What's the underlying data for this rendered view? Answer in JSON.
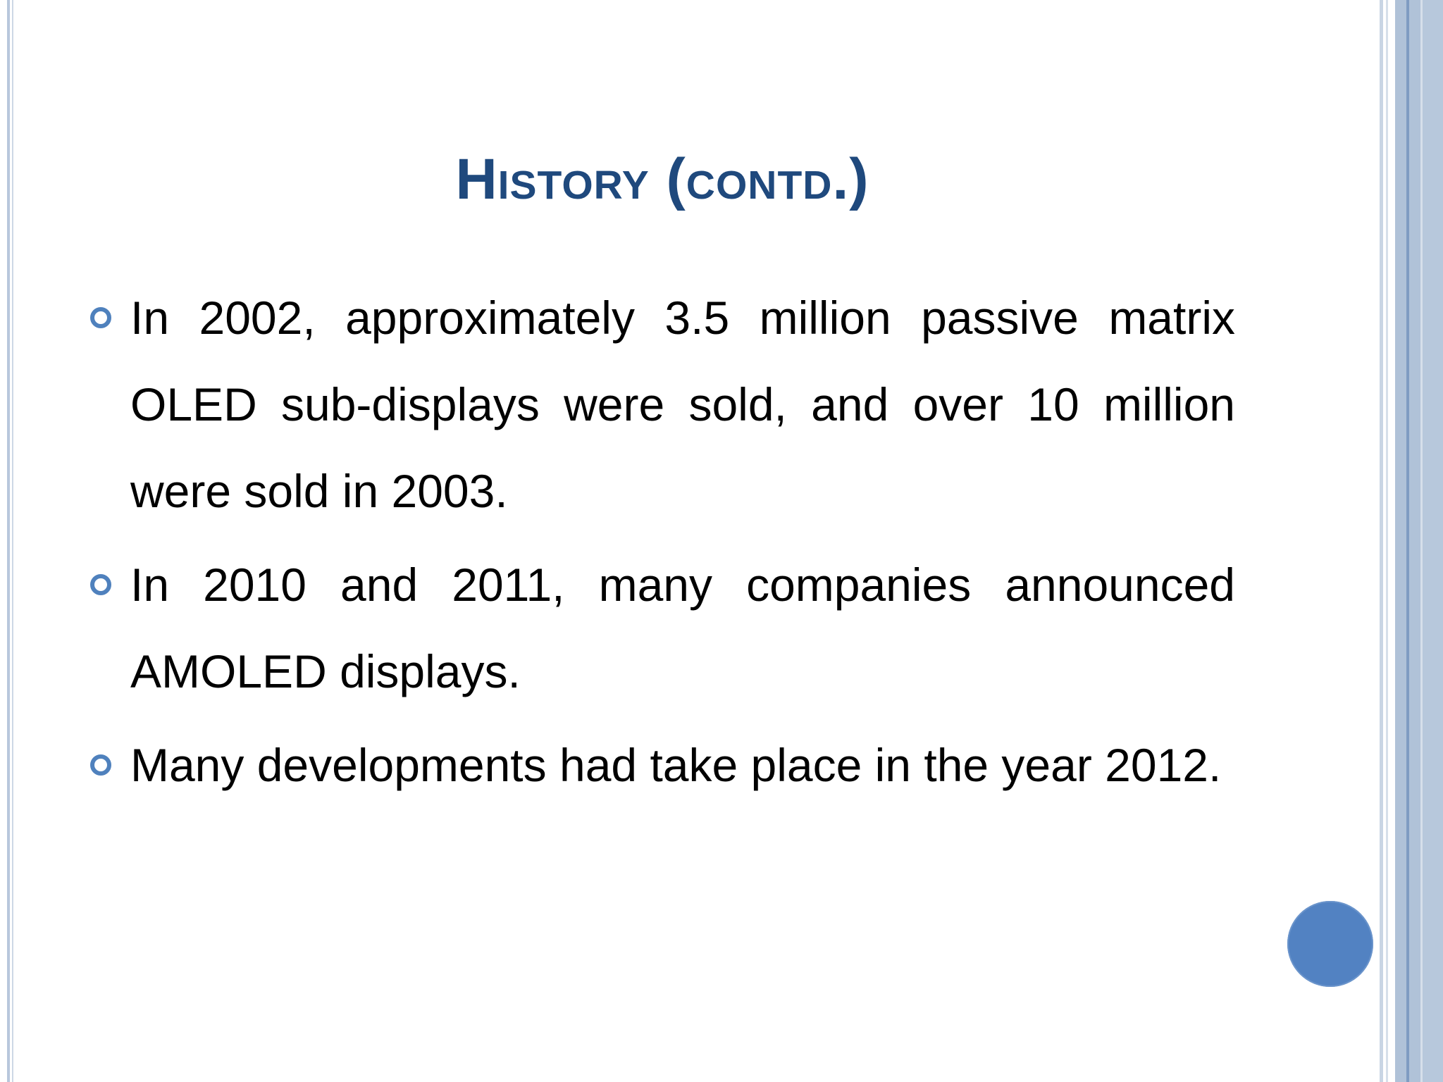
{
  "slide": {
    "title": "History (contd.)",
    "bullets": [
      {
        "text": "In 2002, approximately 3.5 million passive matrix OLED sub-displays were sold, and over 10 million were sold in 2003."
      },
      {
        "text": "In 2010 and 2011, many companies announced AMOLED displays."
      },
      {
        "text": "Many developments had take place in the year 2012."
      }
    ]
  },
  "colors": {
    "title": "#1f497d",
    "bullet_marker": "#4f81bd",
    "page_circle": "#5282c2",
    "side_bars": "#b0c2d8"
  },
  "icons": {
    "bullet": "hollow-circle-icon",
    "corner": "filled-circle-icon"
  }
}
